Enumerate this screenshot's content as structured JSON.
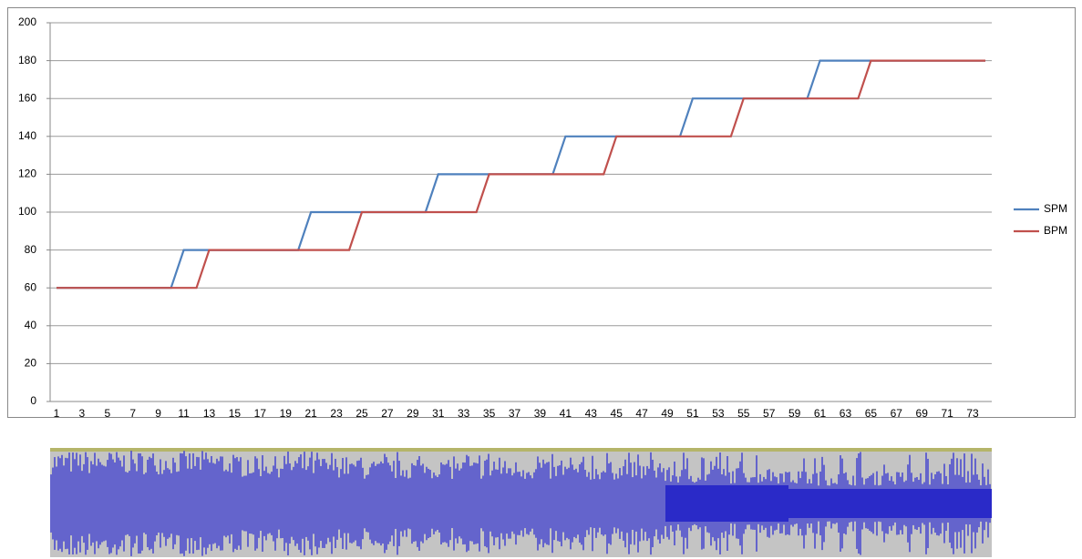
{
  "chart_data": {
    "type": "line",
    "categories": [
      1,
      null,
      3,
      null,
      5,
      null,
      7,
      null,
      9,
      null,
      11,
      null,
      13,
      null,
      15,
      null,
      17,
      null,
      19,
      null,
      21,
      null,
      23,
      null,
      25,
      null,
      27,
      null,
      29,
      null,
      31,
      null,
      33,
      null,
      35,
      null,
      37,
      null,
      39,
      null,
      41,
      null,
      43,
      null,
      45,
      null,
      47,
      null,
      49,
      null,
      51,
      null,
      53,
      null,
      55,
      null,
      57,
      null,
      59,
      null,
      61,
      null,
      63,
      null,
      65,
      null,
      67,
      null,
      69,
      null,
      71,
      null,
      73,
      null
    ],
    "series": [
      {
        "name": "SPM",
        "color": "#4f81bd",
        "values": [
          60,
          60,
          60,
          60,
          60,
          60,
          60,
          60,
          60,
          60,
          80,
          80,
          80,
          80,
          80,
          80,
          80,
          80,
          80,
          80,
          100,
          100,
          100,
          100,
          100,
          100,
          100,
          100,
          100,
          100,
          120,
          120,
          120,
          120,
          120,
          120,
          120,
          120,
          120,
          120,
          140,
          140,
          140,
          140,
          140,
          140,
          140,
          140,
          140,
          140,
          160,
          160,
          160,
          160,
          160,
          160,
          160,
          160,
          160,
          160,
          180,
          180,
          180,
          180,
          180,
          180,
          180,
          180,
          180,
          180,
          180,
          180,
          180,
          180
        ]
      },
      {
        "name": "BPM",
        "color": "#c0504d",
        "values": [
          60,
          60,
          60,
          60,
          60,
          60,
          60,
          60,
          60,
          60,
          60,
          60,
          80,
          80,
          80,
          80,
          80,
          80,
          80,
          80,
          80,
          80,
          80,
          80,
          100,
          100,
          100,
          100,
          100,
          100,
          100,
          100,
          100,
          100,
          120,
          120,
          120,
          120,
          120,
          120,
          120,
          120,
          120,
          120,
          140,
          140,
          140,
          140,
          140,
          140,
          140,
          140,
          140,
          140,
          160,
          160,
          160,
          160,
          160,
          160,
          160,
          160,
          160,
          160,
          180,
          180,
          180,
          180,
          180,
          180,
          180,
          180,
          180,
          180
        ]
      }
    ],
    "ylim": [
      0,
      200
    ],
    "yticks": [
      0,
      20,
      40,
      60,
      80,
      100,
      120,
      140,
      160,
      180,
      200
    ],
    "grid": true,
    "legend": "right"
  }
}
